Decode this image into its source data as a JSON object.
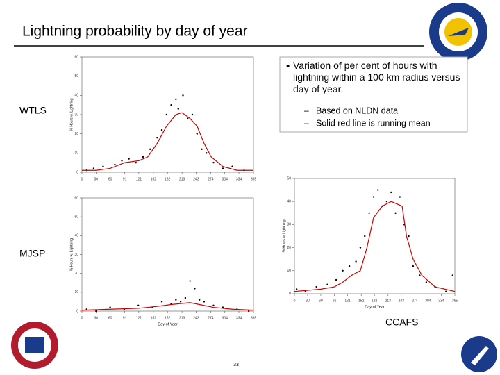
{
  "title": "Lightning probability by day of year",
  "bullet": "Variation of per cent of hours with lightning within a 100 km radius versus day of year.",
  "subbullets": [
    "Based on NLDN data",
    "Solid red line is running mean"
  ],
  "page_number": "33",
  "chart_data": [
    {
      "type": "scatter",
      "label": "WTLS",
      "ylabel": "% Hours w. Lightning",
      "xlim": [
        0,
        365
      ],
      "ylim": [
        0,
        60
      ],
      "xticks": [
        0,
        30,
        60,
        91,
        121,
        152,
        182,
        213,
        243,
        274,
        304,
        334,
        365
      ],
      "yticks": [
        0,
        10,
        20,
        30,
        40,
        50,
        60
      ],
      "points": {
        "color": "#000000",
        "x": [
          10,
          25,
          45,
          70,
          85,
          100,
          115,
          130,
          145,
          160,
          170,
          180,
          190,
          200,
          205,
          215,
          225,
          235,
          245,
          255,
          265,
          280,
          300,
          320,
          345
        ],
        "y": [
          1,
          2,
          3,
          4,
          6,
          7,
          5,
          8,
          12,
          18,
          22,
          30,
          35,
          38,
          33,
          40,
          28,
          30,
          20,
          12,
          10,
          5,
          2,
          3,
          1
        ]
      },
      "mean": {
        "color": "#cc0000",
        "x": [
          0,
          30,
          60,
          91,
          121,
          140,
          160,
          180,
          200,
          213,
          230,
          245,
          260,
          275,
          300,
          330,
          365
        ],
        "y": [
          1,
          1,
          2,
          5,
          6,
          8,
          15,
          24,
          30,
          31,
          28,
          24,
          15,
          8,
          3,
          1,
          1
        ]
      }
    },
    {
      "type": "scatter",
      "label": "MJSP",
      "ylabel": "% Hours w. Lightning",
      "xlabel": "Day of Year",
      "xlim": [
        0,
        365
      ],
      "ylim": [
        0,
        60
      ],
      "xticks": [
        0,
        30,
        60,
        91,
        121,
        152,
        182,
        213,
        243,
        274,
        304,
        334,
        365
      ],
      "yticks": [
        0,
        10,
        20,
        30,
        40,
        50,
        60
      ],
      "points": {
        "color": "#000000",
        "x": [
          10,
          30,
          60,
          90,
          120,
          150,
          170,
          190,
          200,
          210,
          220,
          230,
          240,
          250,
          260,
          280,
          300,
          330,
          355
        ],
        "y": [
          1,
          0,
          2,
          1,
          3,
          2,
          5,
          4,
          6,
          5,
          7,
          16,
          12,
          6,
          5,
          3,
          2,
          1,
          0
        ]
      },
      "mean": {
        "color": "#cc0000",
        "x": [
          0,
          60,
          120,
          160,
          190,
          210,
          230,
          250,
          280,
          320,
          365
        ],
        "y": [
          0.5,
          1,
          1.5,
          2.5,
          3.5,
          4,
          4.5,
          3.5,
          2,
          1,
          0.5
        ]
      }
    },
    {
      "type": "scatter",
      "label": "CCAFS",
      "ylabel": "% Hours w. Lightning",
      "xlabel": "Day of Year",
      "xlim": [
        0,
        365
      ],
      "ylim": [
        0,
        50
      ],
      "xticks": [
        0,
        30,
        60,
        91,
        121,
        152,
        182,
        213,
        243,
        274,
        304,
        334,
        365
      ],
      "yticks": [
        0,
        10,
        20,
        30,
        40,
        50
      ],
      "points": {
        "color": "#000000",
        "x": [
          5,
          25,
          50,
          75,
          95,
          110,
          125,
          140,
          150,
          160,
          170,
          180,
          190,
          200,
          210,
          220,
          230,
          240,
          250,
          260,
          270,
          285,
          300,
          320,
          345,
          360
        ],
        "y": [
          2,
          1,
          3,
          4,
          6,
          10,
          12,
          14,
          20,
          25,
          35,
          42,
          45,
          38,
          40,
          44,
          35,
          42,
          30,
          25,
          12,
          8,
          5,
          3,
          1,
          8
        ]
      },
      "mean": {
        "color": "#cc0000",
        "x": [
          0,
          60,
          91,
          110,
          130,
          150,
          165,
          180,
          200,
          220,
          245,
          255,
          270,
          290,
          320,
          365
        ],
        "y": [
          1,
          2,
          3,
          5,
          8,
          10,
          20,
          33,
          38,
          40,
          38,
          25,
          15,
          8,
          3,
          1
        ]
      }
    }
  ]
}
